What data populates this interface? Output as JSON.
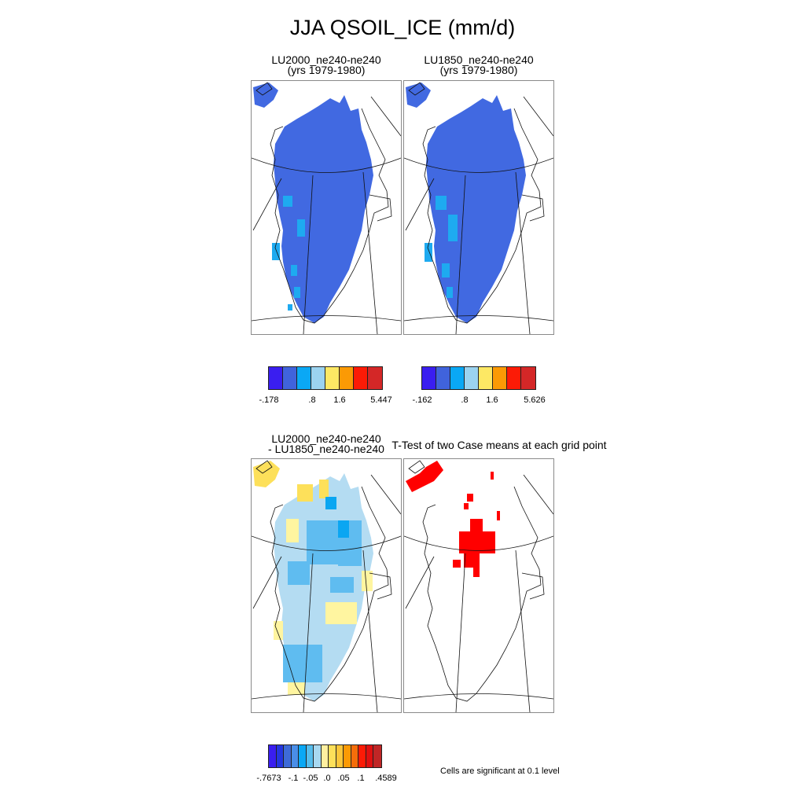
{
  "title": "JJA QSOIL_ICE (mm/d)",
  "panels": [
    {
      "title": "LU2000_ne240-ne240\n(yrs 1979-1980)"
    },
    {
      "title": "LU1850_ne240-ne240\n(yrs 1979-1980)"
    },
    {
      "title": "LU2000_ne240-ne240\n- LU1850_ne240-ne240"
    },
    {
      "title": "T-Test of two Case means at each grid point"
    }
  ],
  "legends": [
    {
      "colors": [
        "#3a1ef0",
        "#4063dc",
        "#0aa8f5",
        "#9bd3f0",
        "#fde864",
        "#fb9a05",
        "#fc1b06",
        "#d42727"
      ],
      "labels": [
        "-.178",
        ".8",
        "1.6",
        "5.447"
      ]
    },
    {
      "colors": [
        "#3a1ef0",
        "#4063dc",
        "#0aa8f5",
        "#9bd3f0",
        "#fde864",
        "#fb9a05",
        "#fc1b06",
        "#d42727"
      ],
      "labels": [
        "-.162",
        ".8",
        "1.6",
        "5.626"
      ]
    },
    {
      "colors": [
        "#3a1ef0",
        "#2436e0",
        "#3e6bd8",
        "#4a8ee8",
        "#0aa8f5",
        "#56bdec",
        "#a8d8f0",
        "#fff0a0",
        "#fde05a",
        "#fbc63a",
        "#fb9a05",
        "#f56d0a",
        "#fc1b06",
        "#e01010",
        "#c02626"
      ],
      "labels": [
        "-.7673",
        "-.1",
        "-.05",
        ".0",
        ".05",
        ".1",
        ".4589"
      ]
    }
  ],
  "note": "Cells are significant at 0.1 level",
  "colors": {
    "field_blue": "#4169e1",
    "field_cyan": "#1eaaf0",
    "diff_lightblue": "#b4dcf2",
    "diff_medblue": "#5fbcf0",
    "diff_cyan": "#0aa6f2",
    "diff_yellow": "#fff5a0",
    "diff_gold": "#fde05a",
    "signif_red": "#ff0000"
  }
}
